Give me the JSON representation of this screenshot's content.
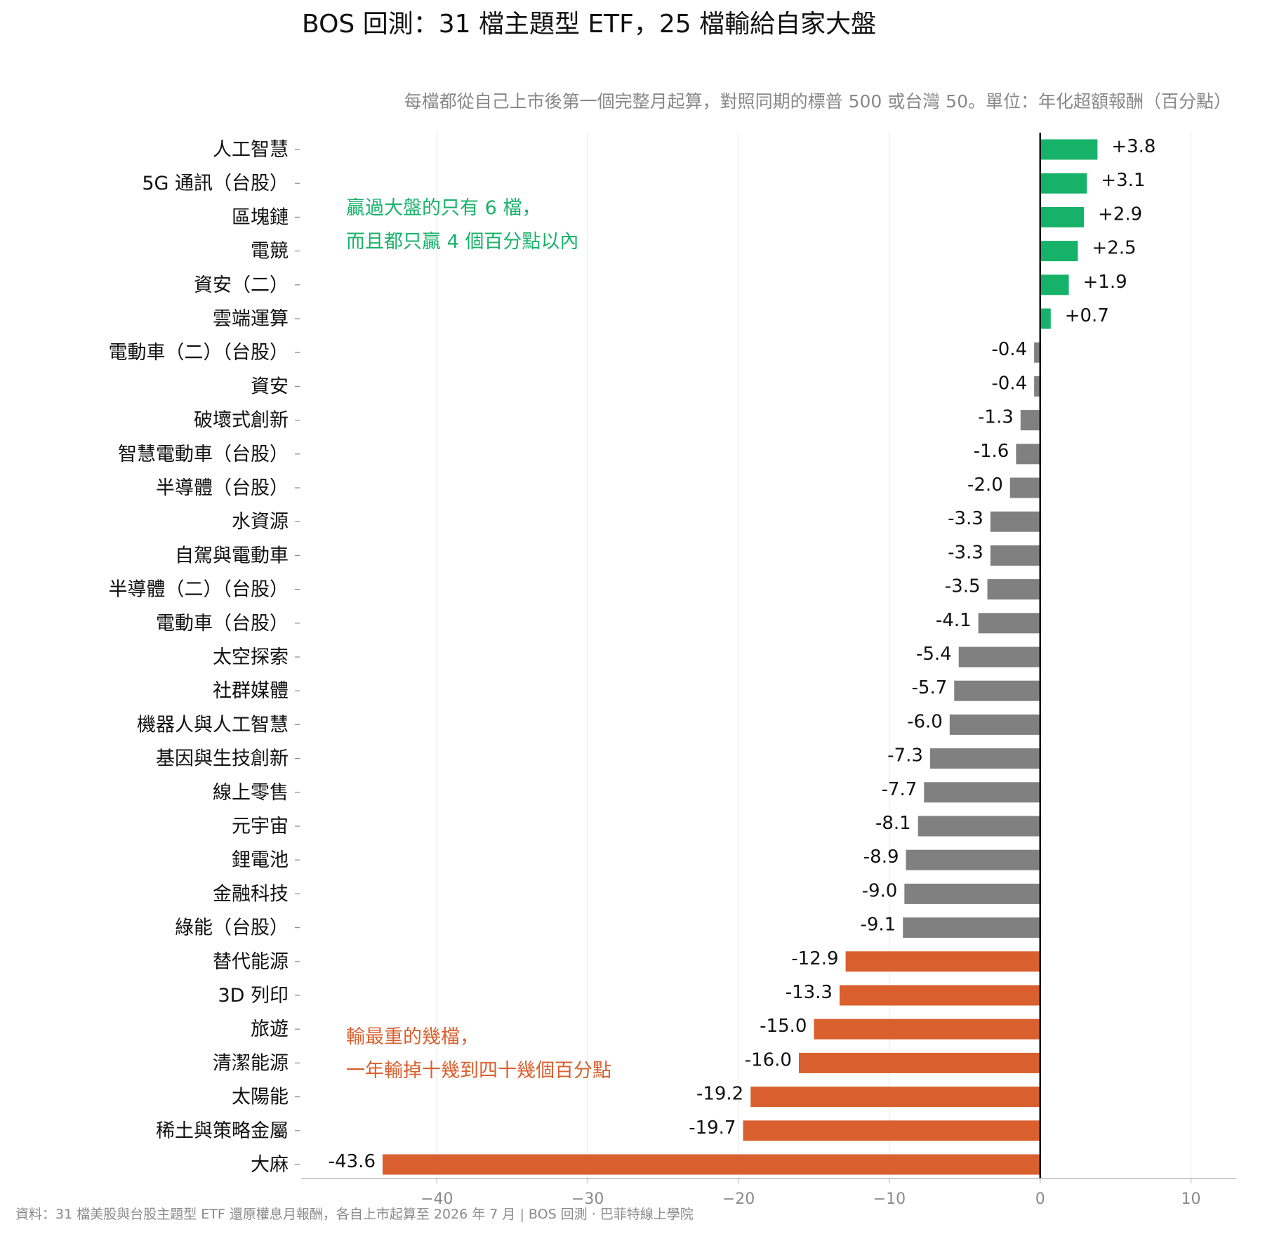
{
  "chart_data": {
    "type": "bar",
    "orientation": "horizontal",
    "title": "BOS 回測：31 檔主題型 ETF，25 檔輸給自家大盤",
    "subtitle": "每檔都從自己上市後第一個完整月起算，對照同期的標普 500 或台灣 50。單位：年化超額報酬（百分點）",
    "categories": [
      "人工智慧",
      "5G 通訊（台股）",
      "區塊鏈",
      "電競",
      "資安（二）",
      "雲端運算",
      "電動車（二）（台股）",
      "資安",
      "破壞式創新",
      "智慧電動車（台股）",
      "半導體（台股）",
      "水資源",
      "自駕與電動車",
      "半導體（二）（台股）",
      "電動車（台股）",
      "太空探索",
      "社群媒體",
      "機器人與人工智慧",
      "基因與生技創新",
      "線上零售",
      "元宇宙",
      "鋰電池",
      "金融科技",
      "綠能（台股）",
      "替代能源",
      "3D 列印",
      "旅遊",
      "清潔能源",
      "太陽能",
      "稀土與策略金屬",
      "大麻"
    ],
    "values": [
      3.8,
      3.1,
      2.9,
      2.5,
      1.9,
      0.7,
      -0.4,
      -0.4,
      -1.3,
      -1.6,
      -2.0,
      -3.3,
      -3.3,
      -3.5,
      -4.1,
      -5.4,
      -5.7,
      -6.0,
      -7.3,
      -7.7,
      -8.1,
      -8.9,
      -9.0,
      -9.1,
      -12.9,
      -13.3,
      -15.0,
      -16.0,
      -19.2,
      -19.7,
      -43.6
    ],
    "value_labels": [
      "+3.8",
      "+3.1",
      "+2.9",
      "+2.5",
      "+1.9",
      "+0.7",
      "-0.4",
      "-0.4",
      "-1.3",
      "-1.6",
      "-2.0",
      "-3.3",
      "-3.3",
      "-3.5",
      "-4.1",
      "-5.4",
      "-5.7",
      "-6.0",
      "-7.3",
      "-7.7",
      "-8.1",
      "-8.9",
      "-9.0",
      "-9.1",
      "-12.9",
      "-13.3",
      "-15.0",
      "-16.0",
      "-19.2",
      "-19.7",
      "-43.6"
    ],
    "groups": [
      "win",
      "win",
      "win",
      "win",
      "win",
      "win",
      "lose",
      "lose",
      "lose",
      "lose",
      "lose",
      "lose",
      "lose",
      "lose",
      "lose",
      "lose",
      "lose",
      "lose",
      "lose",
      "lose",
      "lose",
      "lose",
      "lose",
      "lose",
      "worst",
      "worst",
      "worst",
      "worst",
      "worst",
      "worst",
      "worst"
    ],
    "colors": {
      "win": "#17b26a",
      "lose": "#808080",
      "worst": "#d95f2e"
    },
    "xlim": [
      -49,
      13
    ],
    "xticks": [
      -40,
      -30,
      -20,
      -10,
      0,
      10
    ],
    "xtick_labels": [
      "−40",
      "−30",
      "−20",
      "−10",
      "0",
      "10"
    ],
    "xlabel": "",
    "ylabel": "",
    "grid": "vertical",
    "annotations": [
      {
        "lines": [
          "贏過大盤的只有 6 檔，",
          "而且都只贏 4 個百分點以內"
        ],
        "color": "#17b26a",
        "position": "top-left"
      },
      {
        "lines": [
          "輸最重的幾檔，",
          "一年輸掉十幾到四十幾個百分點"
        ],
        "color": "#d95f2e",
        "position": "bottom-left"
      }
    ],
    "source": "資料：31 檔美股與台股主題型 ETF 還原權息月報酬，各自上市起算至 2026 年 7 月 | BOS 回測 ·  巴菲特線上學院"
  }
}
